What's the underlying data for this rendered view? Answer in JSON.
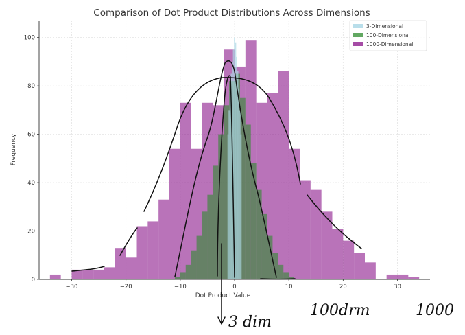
{
  "chart_data": {
    "type": "bar",
    "title": "Comparison of Dot Product Distributions Across Dimensions",
    "xlabel": "Dot Product Value",
    "ylabel": "Frequency",
    "xlim": [
      -36,
      36
    ],
    "ylim": [
      0,
      107
    ],
    "xticks": [
      -30,
      -20,
      -10,
      0,
      10,
      20,
      30
    ],
    "xtick_labels": [
      "−30",
      "−20",
      "−10",
      "0",
      "10",
      "20",
      "30"
    ],
    "yticks": [
      0,
      20,
      40,
      60,
      80,
      100
    ],
    "grid": true,
    "legend_position": "top-right",
    "series": [
      {
        "name": "3-Dimensional",
        "color": "#add8e6",
        "bins": [
          [
            -1.3,
            -1.1,
            60
          ],
          [
            -1.1,
            -0.9,
            70
          ],
          [
            -0.9,
            -0.7,
            78
          ],
          [
            -0.7,
            -0.5,
            85
          ],
          [
            -0.5,
            -0.3,
            90
          ],
          [
            -0.3,
            -0.1,
            95
          ],
          [
            -0.1,
            0.1,
            100
          ],
          [
            0.1,
            0.3,
            98
          ],
          [
            0.3,
            0.5,
            92
          ],
          [
            0.5,
            0.7,
            86
          ],
          [
            0.7,
            0.9,
            79
          ],
          [
            0.9,
            1.1,
            70
          ],
          [
            1.1,
            1.3,
            60
          ]
        ]
      },
      {
        "name": "100-Dimensional",
        "color": "#2e8b2e",
        "bins": [
          [
            -11,
            -10,
            1
          ],
          [
            -10,
            -9,
            3
          ],
          [
            -9,
            -8,
            6
          ],
          [
            -8,
            -7,
            12
          ],
          [
            -7,
            -6,
            18
          ],
          [
            -6,
            -5,
            28
          ],
          [
            -5,
            -4,
            35
          ],
          [
            -4,
            -3,
            47
          ],
          [
            -3,
            -2,
            60
          ],
          [
            -2,
            -1,
            72
          ],
          [
            -1,
            0,
            82
          ],
          [
            0,
            1,
            85
          ],
          [
            1,
            2,
            75
          ],
          [
            2,
            3,
            64
          ],
          [
            3,
            4,
            48
          ],
          [
            4,
            5,
            37
          ],
          [
            5,
            6,
            27
          ],
          [
            6,
            7,
            18
          ],
          [
            7,
            8,
            11
          ],
          [
            8,
            9,
            6
          ],
          [
            9,
            10,
            3
          ],
          [
            10,
            11,
            1
          ]
        ]
      },
      {
        "name": "1000-Dimensional",
        "color": "#800080",
        "bins": [
          [
            -34,
            -32,
            2
          ],
          [
            -32,
            -30,
            0
          ],
          [
            -30,
            -28,
            4
          ],
          [
            -28,
            -26,
            4
          ],
          [
            -26,
            -24,
            4
          ],
          [
            -24,
            -22,
            5
          ],
          [
            -22,
            -20,
            13
          ],
          [
            -20,
            -18,
            9
          ],
          [
            -18,
            -16,
            22
          ],
          [
            -16,
            -14,
            24
          ],
          [
            -14,
            -12,
            33
          ],
          [
            -12,
            -10,
            54
          ],
          [
            -10,
            -8,
            73
          ],
          [
            -8,
            -6,
            54
          ],
          [
            -6,
            -4,
            73
          ],
          [
            -4,
            -2,
            72
          ],
          [
            -2,
            0,
            95
          ],
          [
            0,
            2,
            88
          ],
          [
            2,
            4,
            99
          ],
          [
            4,
            6,
            73
          ],
          [
            6,
            8,
            77
          ],
          [
            8,
            10,
            86
          ],
          [
            10,
            12,
            54
          ],
          [
            12,
            14,
            41
          ],
          [
            14,
            16,
            37
          ],
          [
            16,
            18,
            28
          ],
          [
            18,
            20,
            21
          ],
          [
            20,
            22,
            16
          ],
          [
            22,
            24,
            11
          ],
          [
            24,
            26,
            7
          ],
          [
            26,
            28,
            0
          ],
          [
            28,
            30,
            2
          ],
          [
            30,
            32,
            2
          ],
          [
            32,
            34,
            1
          ]
        ]
      }
    ]
  },
  "annotations": {
    "label_3dim": "3 dim",
    "label_100dim": "100drm",
    "label_1000": "1000"
  }
}
